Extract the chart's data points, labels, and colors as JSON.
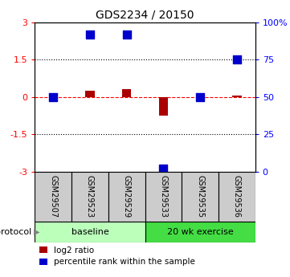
{
  "title": "GDS2234 / 20150",
  "samples": [
    "GSM29507",
    "GSM29523",
    "GSM29529",
    "GSM29533",
    "GSM29535",
    "GSM29536"
  ],
  "log2_ratio": [
    0.0,
    0.25,
    0.3,
    -0.75,
    0.0,
    0.07
  ],
  "percentile_rank_pct": [
    50.0,
    92.0,
    92.0,
    2.0,
    50.0,
    75.0
  ],
  "ylim_left": [
    -3,
    3
  ],
  "ylim_right": [
    0,
    100
  ],
  "yticks_left": [
    -3,
    -1.5,
    0,
    1.5,
    3
  ],
  "yticks_right": [
    0,
    25,
    50,
    75,
    100
  ],
  "hlines_dotted": [
    1.5,
    -1.5
  ],
  "hline_red_dashed": 0.0,
  "protocol_groups": [
    {
      "label": "baseline",
      "start": 0,
      "end": 3,
      "color": "#bbffbb"
    },
    {
      "label": "20 wk exercise",
      "start": 3,
      "end": 6,
      "color": "#44dd44"
    }
  ],
  "bar_color_red": "#aa0000",
  "marker_color_blue": "#0000cc",
  "red_bar_width": 0.25,
  "blue_marker_size": 50,
  "background_color": "#ffffff",
  "legend_red_label": "log2 ratio",
  "legend_blue_label": "percentile rank within the sample",
  "protocol_label": "protocol",
  "sample_box_color": "#cccccc",
  "title_fontsize": 10,
  "tick_fontsize": 8,
  "label_fontsize": 7
}
